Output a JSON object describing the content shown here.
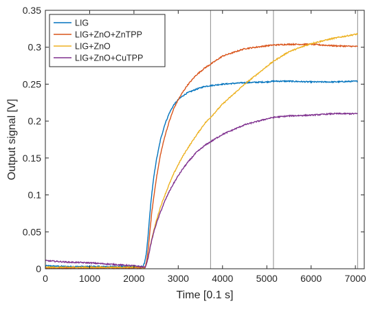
{
  "chart_data": {
    "type": "line",
    "title": "",
    "xlabel": "Time [0.1 s]",
    "ylabel": "Output signal [V]",
    "xlim": [
      0,
      7200
    ],
    "ylim": [
      0,
      0.35
    ],
    "xticks": [
      0,
      1000,
      2000,
      3000,
      4000,
      5000,
      6000,
      7000
    ],
    "xtick_labels": [
      "0",
      "1000",
      "2000",
      "3000",
      "4000",
      "5000",
      "6000",
      "7000"
    ],
    "yticks": [
      0,
      0.05,
      0.1,
      0.15,
      0.2,
      0.25,
      0.3,
      0.35
    ],
    "ytick_labels": [
      "0",
      "0.05",
      "0.1",
      "0.15",
      "0.2",
      "0.25",
      "0.3",
      "0.35"
    ],
    "grid": false,
    "legend_position": "top-left",
    "vertical_lines_x": [
      3730,
      5150,
      7050
    ],
    "series": [
      {
        "name": "LIG",
        "color": "#0072BD",
        "x": [
          0,
          500,
          1000,
          1500,
          2000,
          2200,
          2240,
          2280,
          2320,
          2360,
          2400,
          2450,
          2500,
          2600,
          2700,
          2800,
          2900,
          3000,
          3100,
          3200,
          3400,
          3600,
          3730,
          4000,
          4500,
          5000,
          5150,
          5500,
          6000,
          6500,
          7050
        ],
        "y": [
          0.004,
          0.003,
          0.003,
          0.003,
          0.003,
          0.003,
          0.008,
          0.02,
          0.045,
          0.075,
          0.1,
          0.125,
          0.145,
          0.175,
          0.196,
          0.211,
          0.222,
          0.229,
          0.234,
          0.238,
          0.243,
          0.247,
          0.248,
          0.25,
          0.252,
          0.253,
          0.254,
          0.254,
          0.253,
          0.253,
          0.254
        ]
      },
      {
        "name": "LIG+ZnO+ZnTPP",
        "color": "#D95319",
        "x": [
          0,
          500,
          1000,
          1500,
          2000,
          2250,
          2280,
          2320,
          2360,
          2400,
          2450,
          2500,
          2600,
          2700,
          2800,
          2900,
          3000,
          3100,
          3200,
          3400,
          3600,
          3730,
          4000,
          4500,
          5000,
          5150,
          5500,
          6000,
          6500,
          7050
        ],
        "y": [
          0.001,
          0.001,
          0.001,
          0.001,
          0.001,
          0.001,
          0.008,
          0.025,
          0.05,
          0.075,
          0.098,
          0.12,
          0.155,
          0.18,
          0.2,
          0.217,
          0.229,
          0.239,
          0.248,
          0.262,
          0.272,
          0.277,
          0.288,
          0.298,
          0.302,
          0.303,
          0.304,
          0.304,
          0.302,
          0.301
        ]
      },
      {
        "name": "LIG+ZnO",
        "color": "#EDB120",
        "x": [
          0,
          500,
          1000,
          1500,
          2000,
          2250,
          2280,
          2320,
          2360,
          2400,
          2450,
          2500,
          2600,
          2700,
          2800,
          2900,
          3000,
          3100,
          3200,
          3400,
          3600,
          3730,
          4000,
          4500,
          5000,
          5150,
          5500,
          6000,
          6500,
          7050
        ],
        "y": [
          0.002,
          0.002,
          0.002,
          0.002,
          0.002,
          0.002,
          0.006,
          0.015,
          0.028,
          0.04,
          0.052,
          0.064,
          0.084,
          0.1,
          0.115,
          0.129,
          0.141,
          0.152,
          0.162,
          0.18,
          0.197,
          0.205,
          0.223,
          0.25,
          0.274,
          0.281,
          0.294,
          0.305,
          0.312,
          0.318
        ]
      },
      {
        "name": "LIG+ZnO+CuTPP",
        "color": "#7E2F8E",
        "x": [
          0,
          500,
          1000,
          1500,
          2000,
          2250,
          2280,
          2320,
          2360,
          2400,
          2450,
          2500,
          2600,
          2700,
          2800,
          2900,
          3000,
          3100,
          3200,
          3400,
          3600,
          3730,
          4000,
          4500,
          5000,
          5150,
          5500,
          6000,
          6500,
          7050
        ],
        "y": [
          0.011,
          0.009,
          0.008,
          0.006,
          0.004,
          0.002,
          0.006,
          0.015,
          0.027,
          0.038,
          0.05,
          0.06,
          0.077,
          0.092,
          0.105,
          0.116,
          0.126,
          0.135,
          0.143,
          0.157,
          0.167,
          0.172,
          0.182,
          0.195,
          0.203,
          0.205,
          0.207,
          0.208,
          0.21,
          0.21
        ]
      }
    ]
  }
}
